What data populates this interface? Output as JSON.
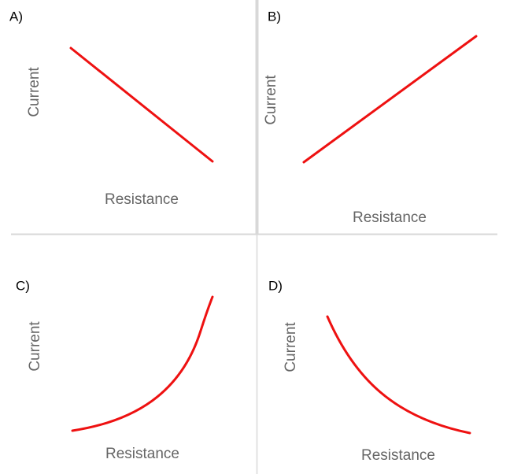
{
  "panels": [
    {
      "label": "A)",
      "y_label": "Current",
      "x_label": "Resistance"
    },
    {
      "label": "B)",
      "y_label": "Current",
      "x_label": "Resistance"
    },
    {
      "label": "C)",
      "y_label": "Current",
      "x_label": "Resistance"
    },
    {
      "label": "D)",
      "y_label": "Current",
      "x_label": "Resistance"
    }
  ]
}
